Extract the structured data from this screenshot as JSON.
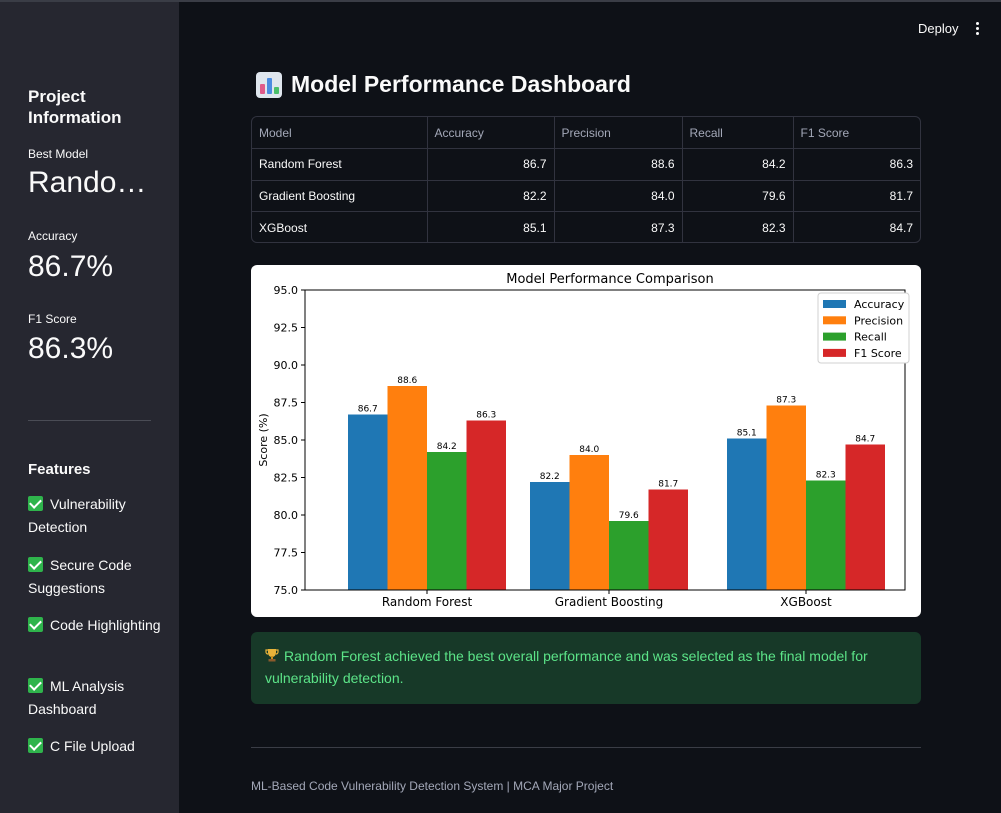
{
  "header": {
    "deploy_label": "Deploy",
    "menu_icon": "kebab-menu-icon"
  },
  "sidebar": {
    "title": "Project Information",
    "best_model_label": "Best Model",
    "best_model_value": "Random Forest",
    "accuracy_label": "Accuracy",
    "accuracy_value": "86.7%",
    "f1_label": "F1 Score",
    "f1_value": "86.3%",
    "features_title": "Features",
    "features": [
      {
        "icon": "check-icon",
        "label": "Vulnerability Detection"
      },
      {
        "icon": "check-icon",
        "label": "Secure Code Suggestions"
      },
      {
        "icon": "check-icon",
        "label": "Code Highlighting"
      },
      {
        "icon": "check-icon",
        "label": "ML Analysis Dashboard"
      },
      {
        "icon": "check-icon",
        "label": "C File Upload"
      }
    ]
  },
  "main": {
    "title_icon": "bar-chart-icon",
    "title": "Model Performance Dashboard",
    "table": {
      "columns": [
        "Model",
        "Accuracy",
        "Precision",
        "Recall",
        "F1 Score"
      ],
      "rows": [
        [
          "Random Forest",
          "86.7",
          "88.6",
          "84.2",
          "86.3"
        ],
        [
          "Gradient Boosting",
          "82.2",
          "84.0",
          "79.6",
          "81.7"
        ],
        [
          "XGBoost",
          "85.1",
          "87.3",
          "82.3",
          "84.7"
        ]
      ]
    },
    "success_icon": "trophy-icon",
    "success_message": "Random Forest achieved the best overall performance and was selected as the final model for vulnerability detection.",
    "footer": "ML-Based Code Vulnerability Detection System | MCA Major Project"
  },
  "chart_data": {
    "type": "bar",
    "title": "Model Performance Comparison",
    "xlabel": "",
    "ylabel": "Score (%)",
    "categories": [
      "Random Forest",
      "Gradient Boosting",
      "XGBoost"
    ],
    "series": [
      {
        "name": "Accuracy",
        "color": "#1f77b4",
        "values": [
          86.7,
          82.2,
          85.1
        ]
      },
      {
        "name": "Precision",
        "color": "#ff7f0e",
        "values": [
          88.6,
          84.0,
          87.3
        ]
      },
      {
        "name": "Recall",
        "color": "#2ca02c",
        "values": [
          84.2,
          79.6,
          82.3
        ]
      },
      {
        "name": "F1 Score",
        "color": "#d62728",
        "values": [
          86.3,
          81.7,
          84.7
        ]
      }
    ],
    "ylim": [
      75,
      95
    ],
    "yticks": [
      "75.0",
      "77.5",
      "80.0",
      "82.5",
      "85.0",
      "87.5",
      "90.0",
      "92.5",
      "95.0"
    ],
    "legend": "top-right",
    "grid": false
  }
}
